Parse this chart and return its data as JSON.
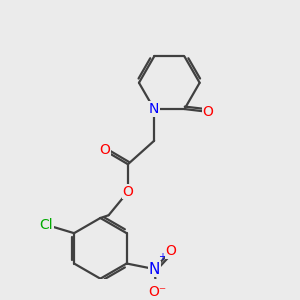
{
  "background_color": "#ebebeb",
  "atom_colors": {
    "C": "#404040",
    "N": "#0000ff",
    "O": "#ff0000",
    "Cl": "#00aa00"
  },
  "bond_color": "#404040",
  "bond_width": 1.6,
  "font_size": 10
}
